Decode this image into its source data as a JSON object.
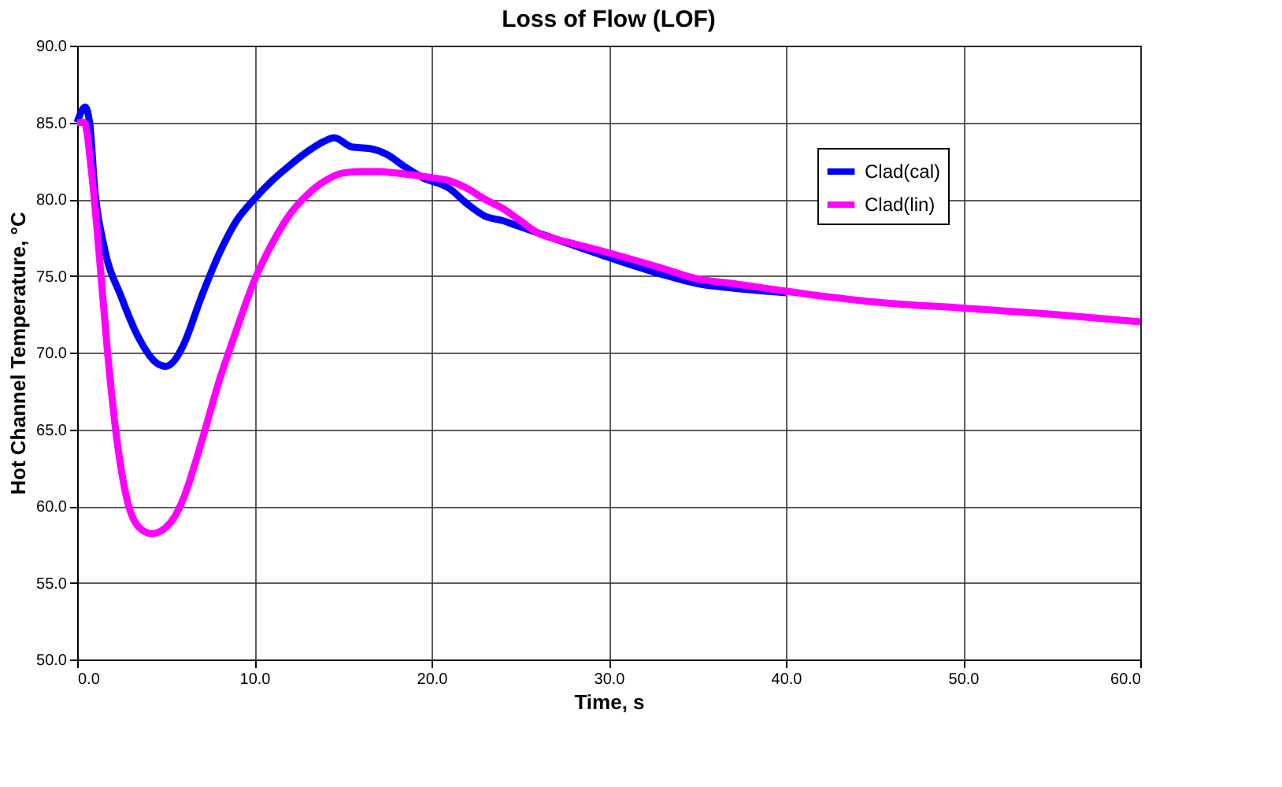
{
  "chart_data": {
    "type": "line",
    "title": "Loss of Flow (LOF)",
    "xlabel": "Time, s",
    "ylabel": "Hot Channel Temperature, °C",
    "xlim": [
      0,
      60
    ],
    "ylim": [
      50,
      90
    ],
    "xticks": [
      {
        "value": 0,
        "label": "0.0"
      },
      {
        "value": 10,
        "label": "10.0"
      },
      {
        "value": 20,
        "label": "20.0"
      },
      {
        "value": 30,
        "label": "30.0"
      },
      {
        "value": 40,
        "label": "40.0"
      },
      {
        "value": 50,
        "label": "50.0"
      },
      {
        "value": 60,
        "label": "60.0"
      }
    ],
    "yticks": [
      {
        "value": 50,
        "label": "50.0"
      },
      {
        "value": 55,
        "label": "55.0"
      },
      {
        "value": 60,
        "label": "60.0"
      },
      {
        "value": 65,
        "label": "65.0"
      },
      {
        "value": 70,
        "label": "70.0"
      },
      {
        "value": 75,
        "label": "75.0"
      },
      {
        "value": 80,
        "label": "80.0"
      },
      {
        "value": 85,
        "label": "85.0"
      },
      {
        "value": 90,
        "label": "90.0"
      }
    ],
    "grid": true,
    "legend": "right",
    "line_style": "solid",
    "series": [
      {
        "name": "Clad(cal)",
        "color": "#0000ff",
        "x": [
          0,
          0.45,
          0.7,
          1.0,
          1.5,
          2.5,
          3.5,
          4.5,
          5,
          5.5,
          6,
          7,
          8,
          9,
          10,
          11,
          12,
          13,
          14,
          14.5,
          15.5,
          16.5,
          17.5,
          18.5,
          19.5,
          21,
          22,
          23,
          24,
          25,
          27,
          30,
          33,
          35,
          37,
          40
        ],
        "values": [
          85,
          86,
          85,
          80.5,
          77,
          73.6,
          70.9,
          69.3,
          69.1,
          69.5,
          70.5,
          73.6,
          76.4,
          78.6,
          80,
          81.2,
          82.2,
          83.1,
          83.8,
          84.0,
          83.4,
          83.3,
          82.9,
          82.1,
          81.4,
          80.7,
          79.7,
          78.9,
          78.6,
          78.2,
          77.4,
          76.2,
          75.1,
          74.5,
          74.2,
          73.9
        ]
      },
      {
        "name": "Clad(lin)",
        "color": "#ff00ff",
        "x": [
          0,
          0.4,
          0.8,
          1.2,
          1.7,
          2.2,
          2.8,
          3.5,
          4.2,
          5,
          5.5,
          6,
          7,
          8,
          9,
          10,
          11,
          12,
          13,
          14,
          15,
          16,
          17,
          18,
          20,
          21,
          22,
          23,
          24,
          25,
          26,
          27,
          28,
          30,
          33,
          35,
          37,
          40,
          45,
          50,
          55,
          60
        ],
        "values": [
          85,
          85,
          81.9,
          77,
          70.2,
          64.7,
          60.5,
          58.6,
          58.2,
          58.6,
          59.3,
          60.5,
          64.1,
          68.1,
          71.5,
          74.7,
          77.1,
          79,
          80.3,
          81.2,
          81.7,
          81.8,
          81.8,
          81.7,
          81.4,
          81.2,
          80.7,
          80,
          79.4,
          78.6,
          77.8,
          77.4,
          77.1,
          76.5,
          75.5,
          74.8,
          74.5,
          74.0,
          73.3,
          72.9,
          72.5,
          72.0
        ]
      }
    ]
  }
}
